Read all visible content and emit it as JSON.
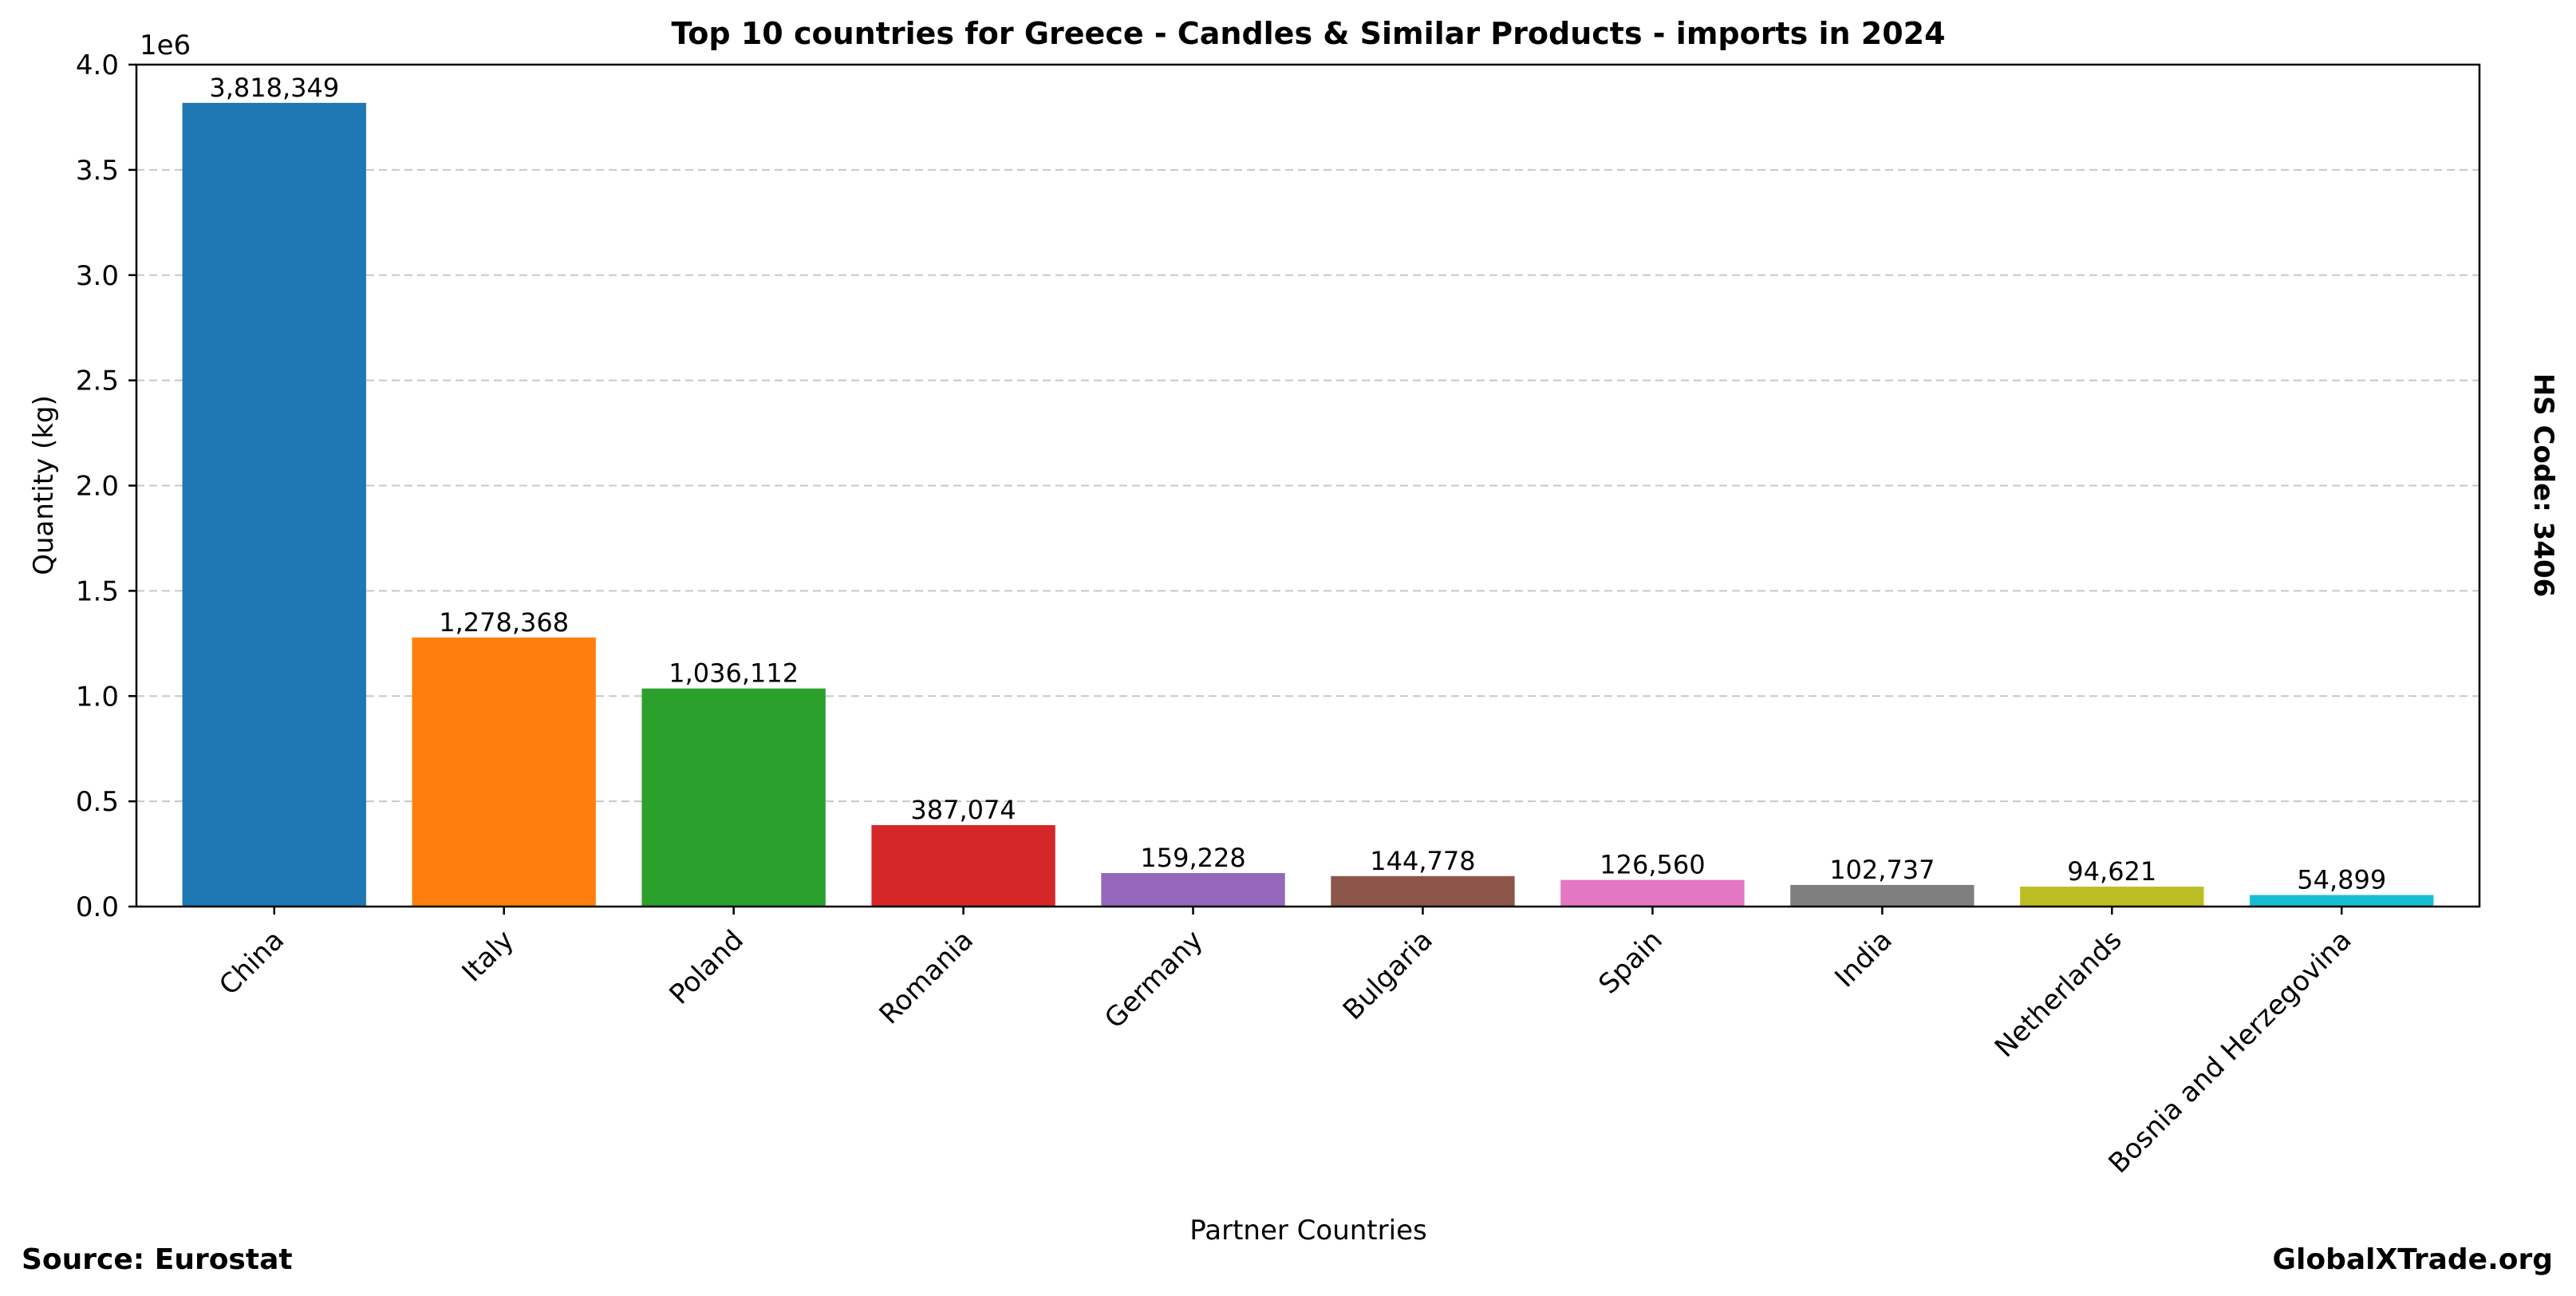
{
  "chart_data": {
    "type": "bar",
    "title": "Top 10 countries for Greece - Candles & Similar Products - imports in 2024",
    "xlabel": "Partner Countries",
    "ylabel": "Quantity (kg)",
    "y_multiplier_label": "1e6",
    "ylim": [
      0,
      4000000
    ],
    "y_ticks": [
      0,
      500000,
      1000000,
      1500000,
      2000000,
      2500000,
      3000000,
      3500000,
      4000000
    ],
    "y_tick_labels": [
      "0.0",
      "0.5",
      "1.0",
      "1.5",
      "2.0",
      "2.5",
      "3.0",
      "3.5",
      "4.0"
    ],
    "grid": "horizontal-dashed",
    "categories": [
      "China",
      "Italy",
      "Poland",
      "Romania",
      "Germany",
      "Bulgaria",
      "Spain",
      "India",
      "Netherlands",
      "Bosnia and Herzegovina"
    ],
    "values": [
      3818349,
      1278368,
      1036112,
      387074,
      159228,
      144778,
      126560,
      102737,
      94621,
      54899
    ],
    "value_labels": [
      "3,818,349",
      "1,278,368",
      "1,036,112",
      "387,074",
      "159,228",
      "144,778",
      "126,560",
      "102,737",
      "94,621",
      "54,899"
    ],
    "colors": [
      "#1f77b4",
      "#ff7f0e",
      "#2ca02c",
      "#d62728",
      "#9467bd",
      "#8c564b",
      "#e377c2",
      "#7f7f7f",
      "#bcbd22",
      "#17becf"
    ]
  },
  "annotations": {
    "hs_code": "HS Code: 3406",
    "source": "Source: Eurostat",
    "brand": "GlobalXTrade.org"
  }
}
